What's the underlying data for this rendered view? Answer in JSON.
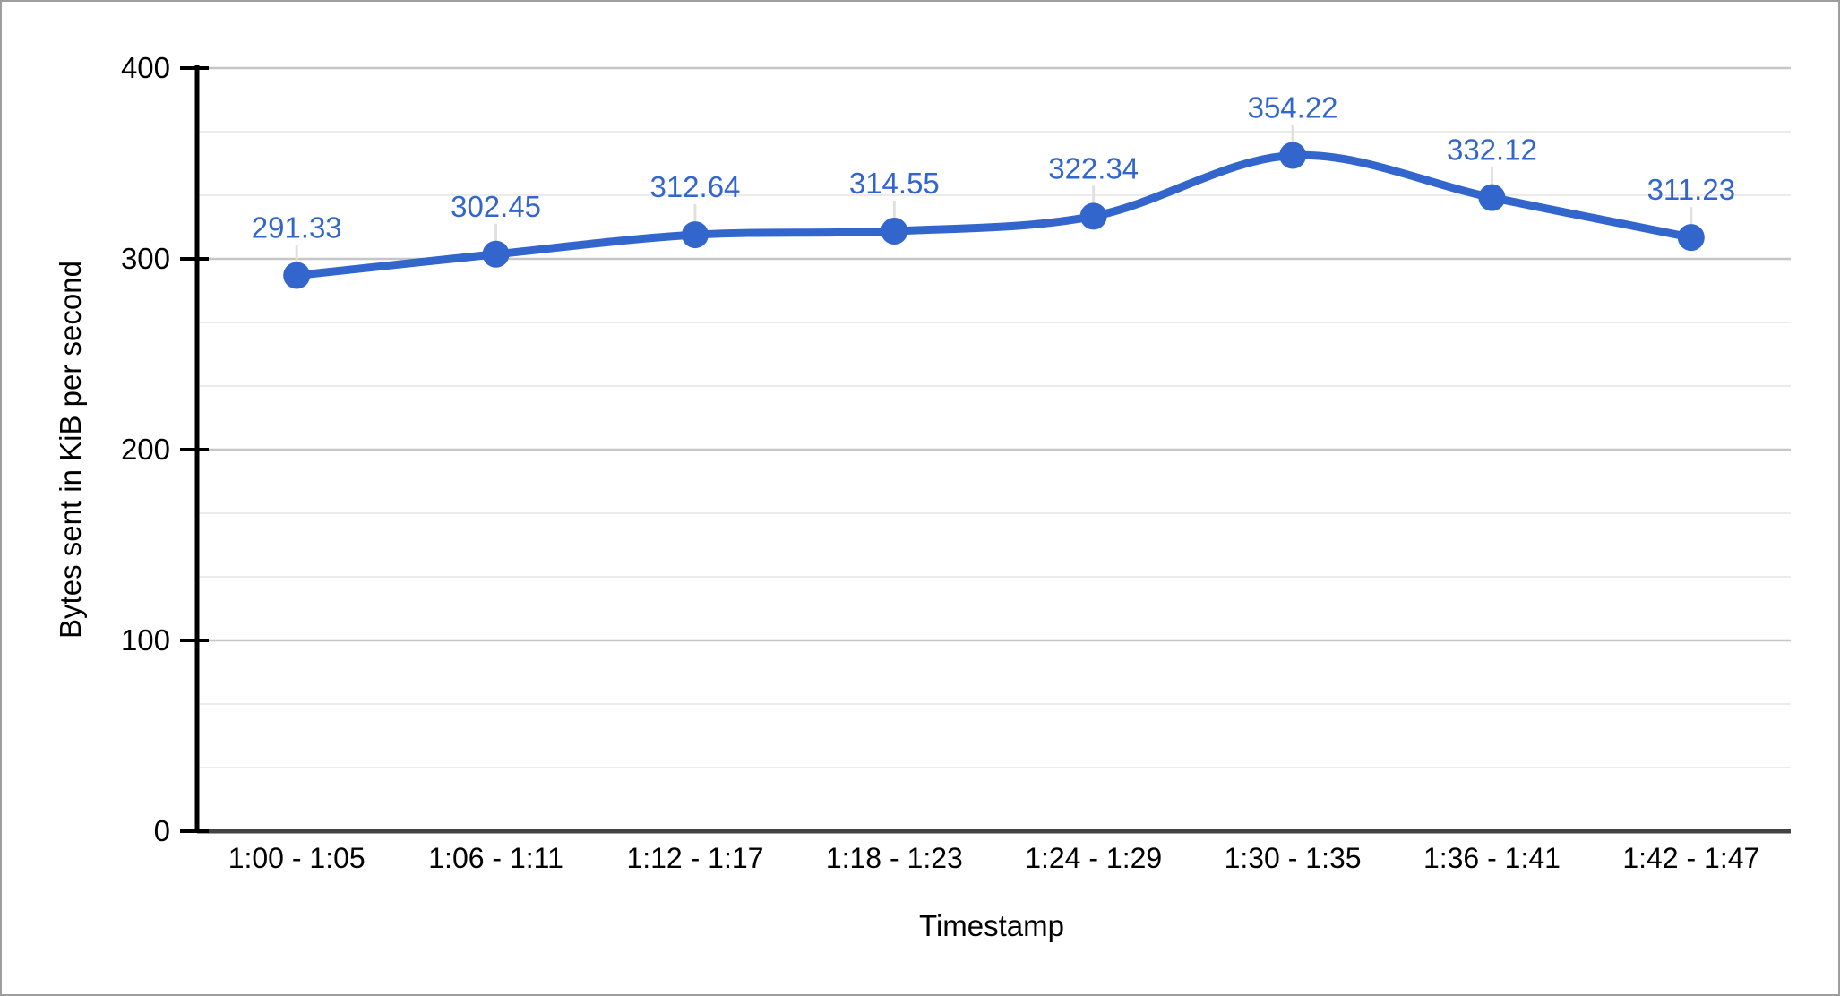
{
  "window": {
    "background": "#ffffff",
    "border_color": "#9e9e9e"
  },
  "chart_data": {
    "type": "line",
    "title": "",
    "xlabel": "Timestamp",
    "ylabel": "Bytes sent in KiB per second",
    "categories": [
      "1:00 - 1:05",
      "1:06 - 1:11",
      "1:12 - 1:17",
      "1:18 - 1:23",
      "1:24 - 1:29",
      "1:30 - 1:35",
      "1:36 - 1:41",
      "1:42 - 1:47"
    ],
    "series": [
      {
        "name": "Bytes sent",
        "values": [
          291.33,
          302.45,
          312.64,
          314.55,
          322.34,
          354.22,
          332.12,
          311.23
        ],
        "point_labels": [
          "291.33",
          "302.45",
          "312.64",
          "314.55",
          "322.34",
          "354.22",
          "332.12",
          "311.23"
        ]
      }
    ],
    "ylim": [
      0,
      400
    ],
    "yticks": [
      0,
      100,
      200,
      300,
      400
    ],
    "minor_gridlines_between_major": 2,
    "grid": true,
    "legend_position": "none",
    "curve": "smooth",
    "annotations_shown": true,
    "colors": {
      "series": "#3366cc",
      "annotation_text": "#3366cc",
      "axis_text": "#000000",
      "axis_line": "#000000",
      "baseline": "#424242",
      "gridline_major": "#c6c6c6",
      "gridline_minor": "#ebebeb",
      "annotation_stem": "#e0e0e0",
      "plot_background": "#ffffff"
    }
  }
}
